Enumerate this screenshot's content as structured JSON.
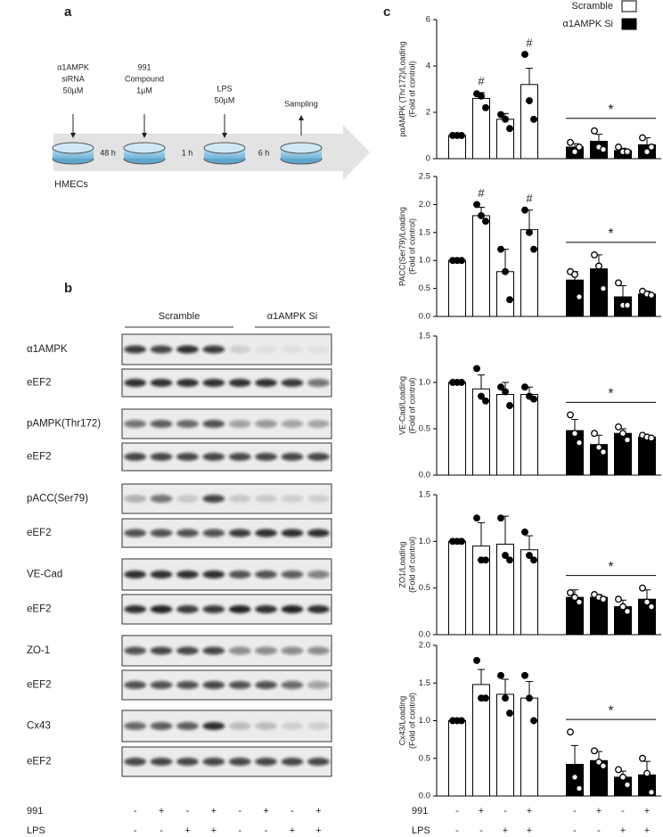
{
  "panel_a": {
    "label": "a",
    "steps": [
      {
        "lines": [
          "α1AMPK",
          "siRNA",
          "50µM"
        ]
      },
      {
        "lines": [
          "991",
          "Compound",
          "1µM"
        ]
      },
      {
        "lines": [
          "LPS",
          "50µM"
        ]
      },
      {
        "lines": [
          "Sampling"
        ]
      }
    ],
    "intervals": [
      "48 h",
      "1 h",
      "6 h"
    ],
    "cells": "HMECs"
  },
  "panel_b": {
    "label": "b",
    "groups": [
      "Scramble",
      "α1AMPK Si"
    ],
    "blots": [
      "α1AMPK",
      "eEF2",
      "pAMPK(Thr172)",
      "eEF2",
      "pACC(Ser79)",
      "eEF2",
      "VE-Cad",
      "eEF2",
      "ZO-1",
      "eEF2",
      "Cx43",
      "eEF2"
    ]
  },
  "panel_c": {
    "label": "c"
  },
  "conditions": {
    "rows": [
      {
        "label": "991",
        "signs": [
          "-",
          "+",
          "-",
          "+",
          "-",
          "+",
          "-",
          "+"
        ]
      },
      {
        "label": "LPS",
        "signs": [
          "-",
          "-",
          "+",
          "+",
          "-",
          "-",
          "+",
          "+"
        ]
      }
    ]
  },
  "chart_data": [
    {
      "type": "bar",
      "ylabel": [
        "pαAMPK (Thr172)/Loading",
        "(Fold of control)"
      ],
      "categories": [
        null,
        null,
        null,
        null,
        null,
        null,
        null,
        null
      ],
      "ylim": [
        0,
        6
      ],
      "yticks": [
        0,
        2,
        4,
        6
      ],
      "series": [
        {
          "name": "Scramble",
          "color": "#ffffff",
          "values": [
            1.0,
            2.6,
            1.7,
            3.2,
            null,
            null,
            null,
            null
          ],
          "errors": [
            0,
            0.25,
            0.25,
            0.7,
            null,
            null,
            null,
            null
          ],
          "points": [
            [
              1,
              1,
              1
            ],
            [
              2.8,
              2.7,
              2.2
            ],
            [
              1.9,
              1.7,
              1.3
            ],
            [
              4.5,
              2.5,
              1.7
            ],
            null,
            null,
            null,
            null
          ]
        },
        {
          "name": "α1AMPK Si",
          "color": "#000000",
          "values": [
            null,
            null,
            null,
            null,
            0.5,
            0.75,
            0.35,
            0.6
          ],
          "errors": [
            null,
            null,
            null,
            null,
            0.15,
            0.3,
            0.1,
            0.3
          ],
          "points": [
            null,
            null,
            null,
            null,
            [
              0.7,
              0.3,
              0.5
            ],
            [
              1.2,
              0.5,
              0.4
            ],
            [
              0.5,
              0.3,
              0.3
            ],
            [
              0.9,
              0.3,
              0.5
            ]
          ]
        }
      ],
      "markers": [
        null,
        "#",
        null,
        "#",
        null,
        null,
        null,
        null
      ],
      "group_annotation": "*"
    },
    {
      "type": "bar",
      "ylabel": [
        "PACC(Ser79)/Loading",
        "(Fold of control)"
      ],
      "categories": [
        null,
        null,
        null,
        null,
        null,
        null,
        null,
        null
      ],
      "ylim": [
        0,
        2.5
      ],
      "yticks": [
        {
          "value": 0,
          "label": "0.0"
        },
        0.5,
        {
          "value": 1,
          "label": "1.0"
        },
        1.5,
        {
          "value": 2,
          "label": "2.0"
        },
        2.5
      ],
      "series": [
        {
          "name": "Scramble",
          "color": "#ffffff",
          "values": [
            1.0,
            1.8,
            0.8,
            1.55,
            null,
            null,
            null,
            null
          ],
          "errors": [
            0,
            0.15,
            0.4,
            0.35,
            null,
            null,
            null,
            null
          ],
          "points": [
            [
              1,
              1,
              1
            ],
            [
              2.0,
              1.8,
              1.7
            ],
            [
              1.2,
              0.8,
              0.3
            ],
            [
              1.9,
              1.5,
              1.2
            ],
            null,
            null,
            null,
            null
          ]
        },
        {
          "name": "α1AMPK Si",
          "color": "#000000",
          "values": [
            null,
            null,
            null,
            null,
            0.65,
            0.85,
            0.35,
            0.4
          ],
          "errors": [
            null,
            null,
            null,
            null,
            0.15,
            0.25,
            0.2,
            0.05
          ],
          "points": [
            null,
            null,
            null,
            null,
            [
              0.8,
              0.75,
              0.35
            ],
            [
              1.1,
              0.9,
              0.5
            ],
            [
              0.6,
              0.2,
              0.2
            ],
            [
              0.45,
              0.4,
              0.38
            ]
          ]
        }
      ],
      "markers": [
        null,
        "#",
        null,
        "#",
        null,
        null,
        null,
        null
      ],
      "group_annotation": "*"
    },
    {
      "type": "bar",
      "ylabel": [
        "VE-Cad/Loading",
        "(Fold of control)"
      ],
      "categories": [
        null,
        null,
        null,
        null,
        null,
        null,
        null,
        null
      ],
      "ylim": [
        0,
        1.5
      ],
      "yticks": [
        {
          "value": 0,
          "label": "0.0"
        },
        0.5,
        {
          "value": 1,
          "label": "1.0"
        },
        1.5
      ],
      "series": [
        {
          "name": "Scramble",
          "color": "#ffffff",
          "values": [
            1.0,
            0.93,
            0.87,
            0.87,
            null,
            null,
            null,
            null
          ],
          "errors": [
            0,
            0.15,
            0.13,
            0.08,
            null,
            null,
            null,
            null
          ],
          "points": [
            [
              1,
              1,
              1
            ],
            [
              1.15,
              0.85,
              0.8
            ],
            [
              0.95,
              0.9,
              0.75
            ],
            [
              0.95,
              0.85,
              0.82
            ],
            null,
            null,
            null,
            null
          ]
        },
        {
          "name": "α1AMPK Si",
          "color": "#000000",
          "values": [
            null,
            null,
            null,
            null,
            0.48,
            0.33,
            0.45,
            0.41
          ],
          "errors": [
            null,
            null,
            null,
            null,
            0.12,
            0.1,
            0.05,
            0.02
          ],
          "points": [
            null,
            null,
            null,
            null,
            [
              0.65,
              0.45,
              0.35
            ],
            [
              0.45,
              0.3,
              0.25
            ],
            [
              0.52,
              0.45,
              0.38
            ],
            [
              0.43,
              0.41,
              0.4
            ]
          ]
        }
      ],
      "group_annotation": "*"
    },
    {
      "type": "bar",
      "ylabel": [
        "ZO1/Loading",
        "(Fold of control)"
      ],
      "categories": [
        null,
        null,
        null,
        null,
        null,
        null,
        null,
        null
      ],
      "ylim": [
        0,
        1.5
      ],
      "yticks": [
        {
          "value": 0,
          "label": "0.0"
        },
        0.5,
        {
          "value": 1,
          "label": "1.0"
        },
        1.5
      ],
      "series": [
        {
          "name": "Scramble",
          "color": "#ffffff",
          "values": [
            1.0,
            0.95,
            0.97,
            0.91,
            null,
            null,
            null,
            null
          ],
          "errors": [
            0,
            0.25,
            0.3,
            0.15,
            null,
            null,
            null,
            null
          ],
          "points": [
            [
              1,
              1,
              1
            ],
            [
              1.25,
              0.8,
              0.8
            ],
            [
              1.25,
              0.85,
              0.8
            ],
            [
              1.1,
              0.85,
              0.8
            ],
            null,
            null,
            null,
            null
          ]
        },
        {
          "name": "α1AMPK Si",
          "color": "#000000",
          "values": [
            null,
            null,
            null,
            null,
            0.4,
            0.4,
            0.3,
            0.38
          ],
          "errors": [
            null,
            null,
            null,
            null,
            0.08,
            0.03,
            0.07,
            0.1
          ],
          "points": [
            null,
            null,
            null,
            null,
            [
              0.45,
              0.4,
              0.35
            ],
            [
              0.43,
              0.4,
              0.38
            ],
            [
              0.38,
              0.3,
              0.25
            ],
            [
              0.5,
              0.35,
              0.3
            ]
          ]
        }
      ],
      "group_annotation": "*"
    },
    {
      "type": "bar",
      "ylabel": [
        "Cx43/Loading",
        "(Fold of control)"
      ],
      "categories": [
        null,
        null,
        null,
        null,
        null,
        null,
        null,
        null
      ],
      "ylim": [
        0,
        2
      ],
      "yticks": [
        {
          "value": 0,
          "label": "0.0"
        },
        0.5,
        {
          "value": 1,
          "label": "1.0"
        },
        1.5,
        {
          "value": 2,
          "label": "2.0"
        }
      ],
      "series": [
        {
          "name": "Scramble",
          "color": "#ffffff",
          "values": [
            1.0,
            1.48,
            1.35,
            1.3,
            null,
            null,
            null,
            null
          ],
          "errors": [
            0,
            0.2,
            0.2,
            0.22,
            null,
            null,
            null,
            null
          ],
          "points": [
            [
              1,
              1,
              1
            ],
            [
              1.8,
              1.3,
              1.3
            ],
            [
              1.6,
              1.3,
              1.1
            ],
            [
              1.6,
              1.3,
              1.0
            ],
            null,
            null,
            null,
            null
          ]
        },
        {
          "name": "α1AMPK Si",
          "color": "#000000",
          "values": [
            null,
            null,
            null,
            null,
            0.42,
            0.47,
            0.25,
            0.28
          ],
          "errors": [
            null,
            null,
            null,
            null,
            0.25,
            0.12,
            0.08,
            0.18
          ],
          "points": [
            null,
            null,
            null,
            null,
            [
              0.85,
              0.25,
              0.1
            ],
            [
              0.6,
              0.45,
              0.4
            ],
            [
              0.35,
              0.25,
              0.15
            ],
            [
              0.5,
              0.3,
              0.05
            ]
          ]
        }
      ],
      "group_annotation": "*"
    }
  ]
}
